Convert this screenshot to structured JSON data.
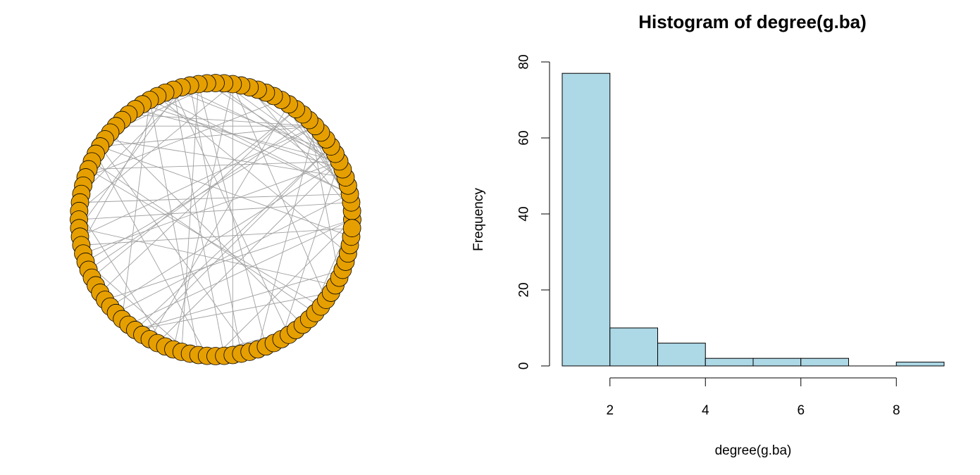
{
  "network": {
    "node_count": 100,
    "node_color": "#E69F00",
    "edge_color": "#A0A0A0",
    "layout": "circle"
  },
  "chart_data": {
    "type": "bar",
    "title": "Histogram of degree(g.ba)",
    "xlabel": "degree(g.ba)",
    "ylabel": "Frequency",
    "bins": [
      [
        1,
        2
      ],
      [
        2,
        3
      ],
      [
        3,
        4
      ],
      [
        4,
        5
      ],
      [
        5,
        6
      ],
      [
        6,
        7
      ],
      [
        7,
        8
      ],
      [
        8,
        9
      ]
    ],
    "values": [
      77,
      10,
      6,
      2,
      2,
      2,
      0,
      1
    ],
    "xlim": [
      1,
      9
    ],
    "ylim": [
      0,
      80
    ],
    "xticks": [
      "2",
      "4",
      "6",
      "8"
    ],
    "yticks": [
      "0",
      "20",
      "40",
      "60",
      "80"
    ],
    "bar_color": "#ADD8E6",
    "grid": false
  }
}
